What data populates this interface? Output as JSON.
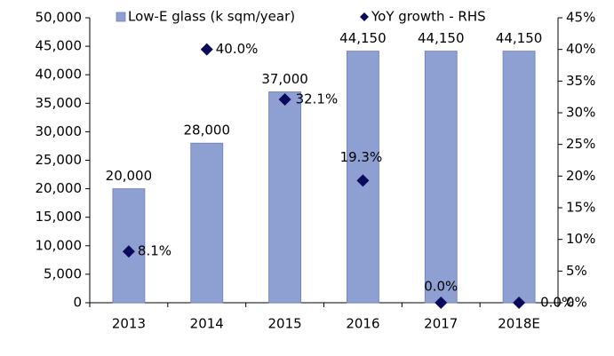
{
  "chart_data": {
    "type": "bar",
    "categories": [
      "2013",
      "2014",
      "2015",
      "2016",
      "2017",
      "2018E"
    ],
    "series": [
      {
        "name": "Low-E glass (k sqm/year)",
        "type": "bar",
        "color": "#8e9fd2",
        "values": [
          20000,
          28000,
          37000,
          44150,
          44150,
          44150
        ],
        "value_labels": [
          "20,000",
          "28,000",
          "37,000",
          "44,150",
          "44,150",
          "44,150"
        ]
      },
      {
        "name": "YoY growth - RHS",
        "type": "scatter",
        "axis": "y2",
        "color": "#0b0b5e",
        "values": [
          8.1,
          40.0,
          32.1,
          19.3,
          0.0,
          0.0
        ],
        "value_labels": [
          "8.1%",
          "40.0%",
          "32.1%",
          "19.3%",
          "0.0%",
          "0.0%"
        ]
      }
    ],
    "ylim": [
      0,
      50000
    ],
    "yticks": [
      0,
      {
        "value": 5000,
        "label": "5,000"
      },
      {
        "value": 10000,
        "label": "10,000"
      },
      {
        "value": 15000,
        "label": "15,000"
      },
      {
        "value": 20000,
        "label": "20,000"
      },
      {
        "value": 25000,
        "label": "25,000"
      },
      {
        "value": 30000,
        "label": "30,000"
      },
      {
        "value": 35000,
        "label": "35,000"
      },
      {
        "value": 40000,
        "label": "40,000"
      },
      {
        "value": 45000,
        "label": "45,000"
      },
      {
        "value": 50000,
        "label": "50,000"
      }
    ],
    "y2lim": [
      0,
      45
    ],
    "y2ticks": [
      {
        "value": 0,
        "label": "0%"
      },
      {
        "value": 5,
        "label": "5%"
      },
      {
        "value": 10,
        "label": "10%"
      },
      {
        "value": 15,
        "label": "15%"
      },
      {
        "value": 20,
        "label": "20%"
      },
      {
        "value": 25,
        "label": "25%"
      },
      {
        "value": 30,
        "label": "30%"
      },
      {
        "value": 35,
        "label": "35%"
      },
      {
        "value": 40,
        "label": "40%"
      },
      {
        "value": 45,
        "label": "45%"
      }
    ],
    "legend": "top",
    "grid": false
  }
}
